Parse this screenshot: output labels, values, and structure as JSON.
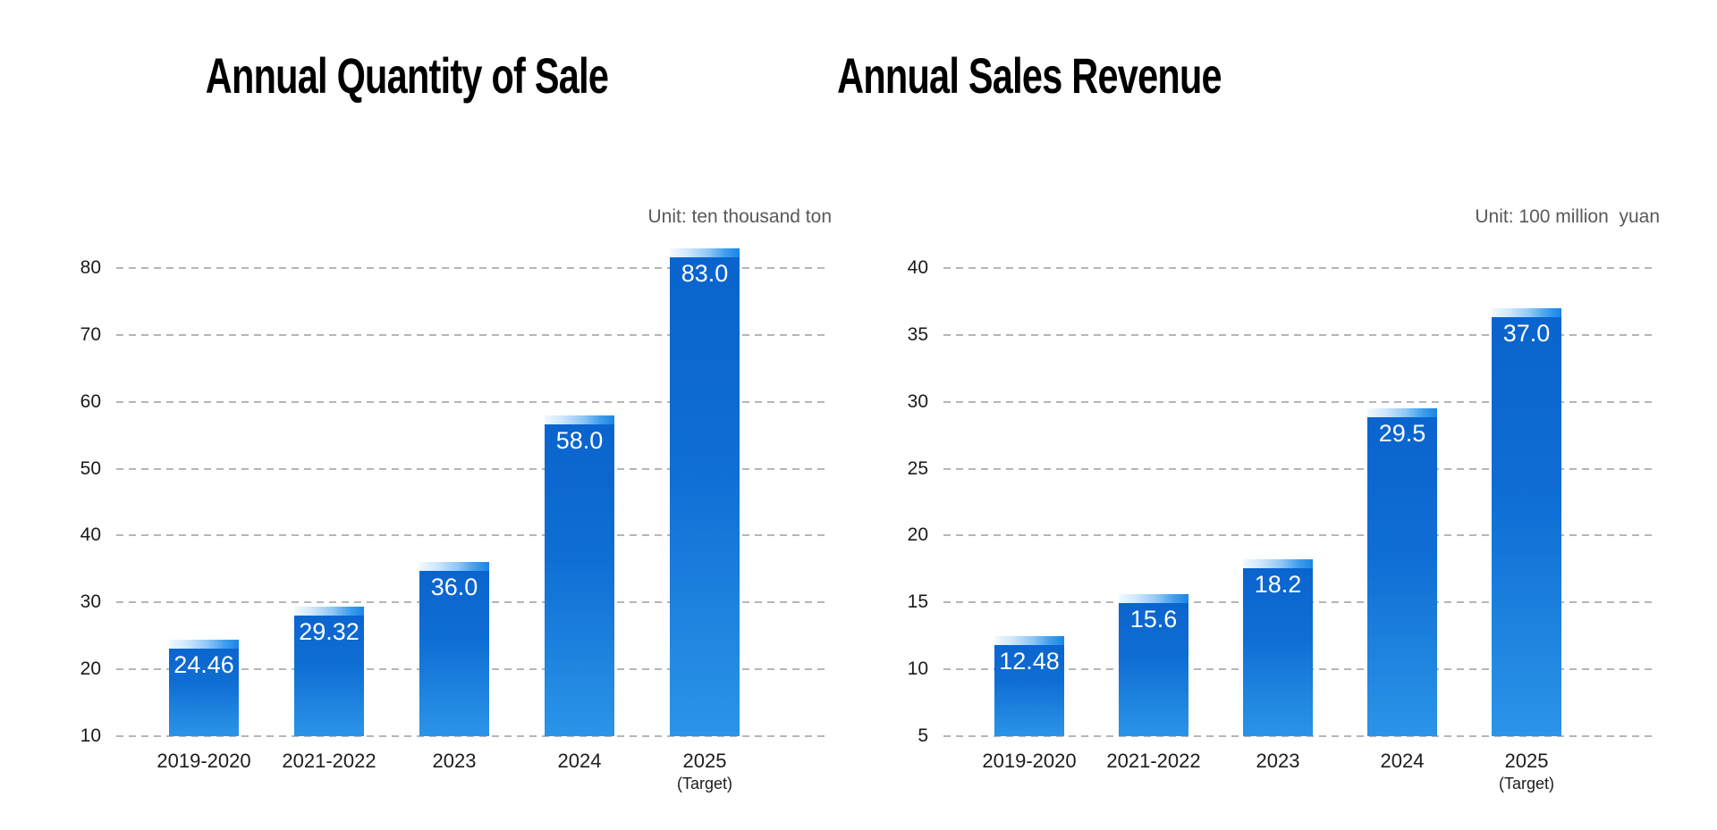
{
  "page": {
    "background": "#ffffff"
  },
  "chart_data": [
    {
      "type": "bar",
      "title": "Annual Quantity of Sale",
      "unit": "Unit: ten thousand ton",
      "categories": [
        "2019-2020",
        "2021-2022",
        "2023",
        "2024",
        "2025 (Target)"
      ],
      "category_lines": [
        [
          "2019-2020"
        ],
        [
          "2021-2022"
        ],
        [
          "2023"
        ],
        [
          "2024"
        ],
        [
          "2025",
          "(Target)"
        ]
      ],
      "values": [
        24.46,
        29.32,
        36,
        58,
        83
      ],
      "value_labels": [
        "24.46",
        "29.32",
        "36.0",
        "58.0",
        "83.0"
      ],
      "yticks": [
        10,
        20,
        30,
        40,
        50,
        60,
        70,
        80
      ],
      "ylim": [
        10,
        85
      ],
      "xlabel": "",
      "ylabel": "",
      "grid": "horizontal-dashed",
      "legend": "none",
      "bar_color_top": "#0a63cd",
      "bar_color_bottom": "#2b94e8",
      "bar_cap_gradient": [
        "#f2f9fe",
        "#1a85e6"
      ],
      "value_label_color": "#ffffff"
    },
    {
      "type": "bar",
      "title": "Annual Sales Revenue",
      "unit": "Unit: 100 million  yuan",
      "categories": [
        "2019-2020",
        "2021-2022",
        "2023",
        "2024",
        "2025 (Target)"
      ],
      "category_lines": [
        [
          "2019-2020"
        ],
        [
          "2021-2022"
        ],
        [
          "2023"
        ],
        [
          "2024"
        ],
        [
          "2025",
          "(Target)"
        ]
      ],
      "values": [
        12.48,
        15.6,
        18.2,
        29.5,
        37
      ],
      "value_labels": [
        "12.48",
        "15.6",
        "18.2",
        "29.5",
        "37.0"
      ],
      "yticks": [
        5,
        10,
        15,
        20,
        25,
        30,
        35,
        40
      ],
      "ylim": [
        5,
        42.5
      ],
      "xlabel": "",
      "ylabel": "",
      "grid": "horizontal-dashed",
      "legend": "none",
      "bar_color_top": "#0a63cd",
      "bar_color_bottom": "#2b94e8",
      "bar_cap_gradient": [
        "#f2f9fe",
        "#1a85e6"
      ],
      "value_label_color": "#ffffff"
    }
  ]
}
